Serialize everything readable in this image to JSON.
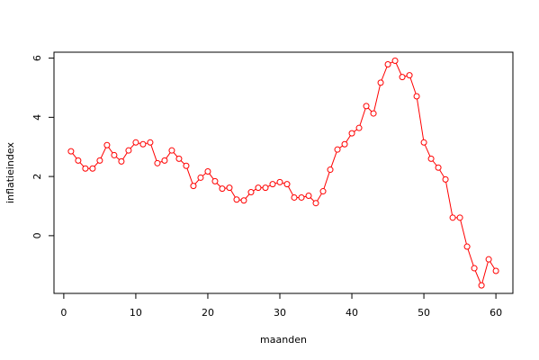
{
  "chart_data": {
    "type": "line",
    "xlabel": "maanden",
    "ylabel": "inflatieindex",
    "x": [
      1,
      2,
      3,
      4,
      5,
      6,
      7,
      8,
      9,
      10,
      11,
      12,
      13,
      14,
      15,
      16,
      17,
      18,
      19,
      20,
      21,
      22,
      23,
      24,
      25,
      26,
      27,
      28,
      29,
      30,
      31,
      32,
      33,
      34,
      35,
      36,
      37,
      38,
      39,
      40,
      41,
      42,
      43,
      44,
      45,
      46,
      47,
      48,
      49,
      50,
      51,
      52,
      53,
      54,
      55,
      56,
      57,
      58,
      59,
      60
    ],
    "values": [
      2.85,
      2.54,
      2.27,
      2.27,
      2.54,
      3.06,
      2.72,
      2.51,
      2.88,
      3.15,
      3.09,
      3.15,
      2.45,
      2.54,
      2.88,
      2.6,
      2.36,
      1.68,
      1.96,
      2.17,
      1.84,
      1.59,
      1.62,
      1.22,
      1.19,
      1.47,
      1.62,
      1.62,
      1.74,
      1.81,
      1.74,
      1.29,
      1.29,
      1.35,
      1.1,
      1.5,
      2.23,
      2.91,
      3.09,
      3.46,
      3.64,
      4.38,
      4.13,
      5.17,
      5.79,
      5.91,
      5.36,
      5.42,
      4.71,
      3.15,
      2.6,
      2.3,
      1.9,
      0.61,
      0.61,
      -0.37,
      -1.1,
      -1.68,
      -0.8,
      -1.19
    ],
    "color": "#ff0000",
    "xlim": [
      -1.36,
      62.36
    ],
    "xticks": [
      0,
      10,
      20,
      30,
      40,
      50,
      60
    ],
    "ylim": [
      -1.95,
      6.2
    ],
    "yticks": [
      0,
      2,
      4,
      6
    ]
  }
}
